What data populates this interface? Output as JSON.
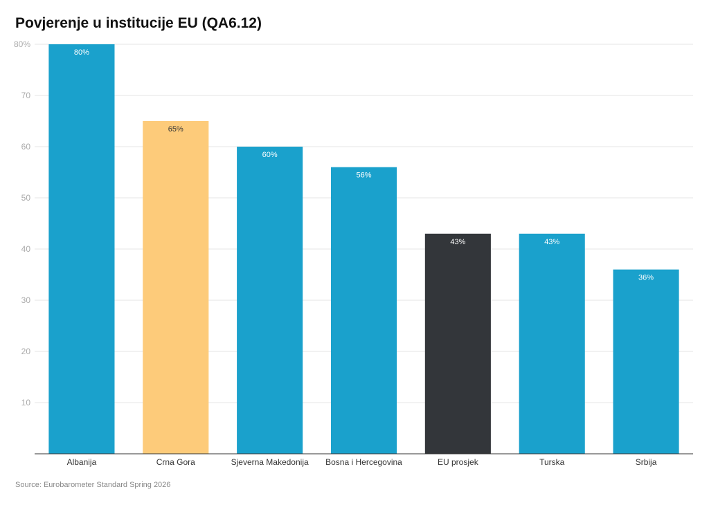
{
  "title": "Povjerenje u institucije EU (QA6.12)",
  "source": "Source: Eurobarometer Standard Spring 2026",
  "chart_data": {
    "type": "bar",
    "title": "Povjerenje u institucije EU (QA6.12)",
    "xlabel": "",
    "ylabel": "",
    "ylim": [
      0,
      80
    ],
    "yticks": [
      10,
      20,
      30,
      40,
      50,
      60,
      70,
      80
    ],
    "ytick_labels": [
      "10",
      "20",
      "30",
      "40",
      "50",
      "60",
      "70",
      "80%"
    ],
    "grid": true,
    "categories": [
      "Albanija",
      "Crna Gora",
      "Sjeverna Makedonija",
      "Bosna i Hercegovina",
      "EU prosjek",
      "Turska",
      "Srbija"
    ],
    "values": [
      80,
      65,
      60,
      56,
      43,
      43,
      36
    ],
    "data_labels": [
      "80%",
      "65%",
      "60%",
      "56%",
      "43%",
      "43%",
      "36%"
    ],
    "colors": [
      "#1aa1cc",
      "#fdcb7a",
      "#1aa1cc",
      "#1aa1cc",
      "#33363a",
      "#1aa1cc",
      "#1aa1cc"
    ],
    "label_colors": [
      "#ffffff",
      "#333333",
      "#ffffff",
      "#ffffff",
      "#ffffff",
      "#ffffff",
      "#ffffff"
    ]
  }
}
